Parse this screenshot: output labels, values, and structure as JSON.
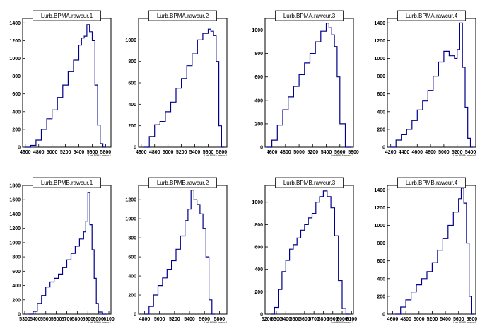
{
  "chart_data": [
    {
      "type": "histogram",
      "title": "Lurb.BPMA.rawcur.1",
      "xlabel": "Lurb.BPMA.rawcur.1",
      "xlim": [
        4560,
        5880
      ],
      "ylim": [
        0,
        1450
      ],
      "xticks": [
        4600,
        4800,
        5000,
        5200,
        5400,
        5600,
        5800
      ],
      "yticks": [
        0,
        200,
        400,
        600,
        800,
        1000,
        1200,
        1400
      ],
      "x": [
        4600,
        4680,
        4760,
        4840,
        4920,
        5000,
        5080,
        5160,
        5240,
        5320,
        5400,
        5440,
        5480,
        5520,
        5560,
        5600,
        5640,
        5680,
        5720,
        5760
      ],
      "values": [
        0,
        20,
        80,
        200,
        320,
        420,
        560,
        700,
        850,
        980,
        1150,
        1230,
        1250,
        1380,
        1300,
        1200,
        700,
        250,
        40,
        0
      ]
    },
    {
      "type": "histogram",
      "title": "Lurb.BPMA.rawcur.2",
      "xlabel": "Lurb.BPMA.rawcur.2",
      "xlim": [
        4560,
        5880
      ],
      "ylim": [
        0,
        1200
      ],
      "xticks": [
        4600,
        4800,
        5000,
        5200,
        5400,
        5600,
        5800
      ],
      "yticks": [
        0,
        200,
        400,
        600,
        800,
        1000
      ],
      "x": [
        4640,
        4720,
        4800,
        4880,
        4960,
        5040,
        5120,
        5200,
        5280,
        5360,
        5440,
        5520,
        5600,
        5640,
        5680,
        5720,
        5760,
        5800
      ],
      "values": [
        0,
        100,
        210,
        240,
        330,
        420,
        550,
        640,
        760,
        870,
        1000,
        1060,
        1100,
        1080,
        1040,
        800,
        200,
        0
      ]
    },
    {
      "type": "histogram",
      "title": "Lurb.BPMA.rawcur.3",
      "xlabel": "Lurb.BPMA.rawcur.3",
      "xlim": [
        4500,
        5800
      ],
      "ylim": [
        0,
        1100
      ],
      "xticks": [
        4600,
        4800,
        5000,
        5200,
        5400,
        5600,
        5800
      ],
      "yticks": [
        0,
        200,
        400,
        600,
        800,
        1000
      ],
      "x": [
        4520,
        4600,
        4680,
        4760,
        4840,
        4920,
        5000,
        5080,
        5160,
        5240,
        5320,
        5400,
        5440,
        5480,
        5520,
        5560,
        5600,
        5680
      ],
      "values": [
        0,
        60,
        190,
        320,
        430,
        520,
        620,
        720,
        800,
        900,
        990,
        1060,
        1020,
        960,
        860,
        600,
        200,
        0
      ]
    },
    {
      "type": "histogram",
      "title": "Lurb.BPMA.rawcur.4",
      "xlabel": "Lurb.BPMA.rawcur.4",
      "xlim": [
        4150,
        5480
      ],
      "ylim": [
        0,
        1450
      ],
      "xticks": [
        4200,
        4400,
        4600,
        4800,
        5000,
        5200,
        5400
      ],
      "yticks": [
        0,
        200,
        400,
        600,
        800,
        1000,
        1200,
        1400
      ],
      "x": [
        4200,
        4280,
        4360,
        4440,
        4520,
        4600,
        4680,
        4760,
        4840,
        4920,
        5000,
        5080,
        5160,
        5200,
        5240,
        5280,
        5320,
        5360,
        5400
      ],
      "values": [
        0,
        80,
        140,
        200,
        300,
        420,
        520,
        640,
        800,
        960,
        1080,
        1030,
        1000,
        1100,
        1400,
        900,
        450,
        100,
        0
      ]
    },
    {
      "type": "histogram",
      "title": "Lurb.BPMB.rawcur.1",
      "xlabel": "Lurb.BPMB.rawcur.1",
      "xlim": [
        5280,
        6120
      ],
      "ylim": [
        0,
        1800
      ],
      "xticks": [
        5300,
        5400,
        5500,
        5600,
        5700,
        5800,
        5900,
        6000,
        6100
      ],
      "yticks": [
        0,
        200,
        400,
        600,
        800,
        1000,
        1200,
        1400,
        1600,
        1800
      ],
      "x": [
        5340,
        5380,
        5420,
        5460,
        5500,
        5540,
        5580,
        5620,
        5660,
        5700,
        5740,
        5780,
        5820,
        5860,
        5880,
        5900,
        5920,
        5940,
        5960,
        5980,
        6000,
        6040
      ],
      "values": [
        0,
        40,
        150,
        260,
        380,
        450,
        500,
        560,
        650,
        760,
        850,
        950,
        1050,
        1150,
        1300,
        1700,
        1250,
        900,
        500,
        150,
        30,
        0
      ]
    },
    {
      "type": "histogram",
      "title": "Lurb.BPMB.rawcur.2",
      "xlabel": "Lurb.BPMB.rawcur.2",
      "xlim": [
        4720,
        5900
      ],
      "ylim": [
        0,
        1350
      ],
      "xticks": [
        4800,
        5000,
        5200,
        5400,
        5600,
        5800
      ],
      "yticks": [
        0,
        200,
        400,
        600,
        800,
        1000,
        1200
      ],
      "x": [
        4800,
        4860,
        4920,
        4980,
        5040,
        5100,
        5160,
        5220,
        5280,
        5340,
        5380,
        5420,
        5460,
        5500,
        5540,
        5580,
        5620,
        5660,
        5700
      ],
      "values": [
        0,
        80,
        200,
        300,
        380,
        470,
        560,
        680,
        820,
        980,
        1100,
        1300,
        1200,
        1150,
        1050,
        900,
        600,
        150,
        0
      ]
    },
    {
      "type": "histogram",
      "title": "Lurb.BPMB.rawcur.3",
      "xlabel": "Lurb.BPMB.rawcur.3",
      "xlim": [
        5180,
        6120
      ],
      "ylim": [
        0,
        1150
      ],
      "xticks": [
        5200,
        5300,
        5400,
        5500,
        5600,
        5700,
        5800,
        5900,
        6000,
        6100
      ],
      "yticks": [
        0,
        200,
        400,
        600,
        800,
        1000
      ],
      "x": [
        5240,
        5280,
        5320,
        5360,
        5400,
        5440,
        5480,
        5520,
        5560,
        5600,
        5640,
        5680,
        5720,
        5760,
        5800,
        5840,
        5880,
        5920,
        5960,
        6000,
        6040
      ],
      "values": [
        0,
        60,
        220,
        380,
        480,
        580,
        620,
        680,
        750,
        800,
        860,
        900,
        1000,
        1050,
        1100,
        1050,
        950,
        700,
        300,
        50,
        0
      ]
    },
    {
      "type": "histogram",
      "title": "Lurb.BPMB.rawcur.4",
      "xlabel": "Lurb.BPMB.rawcur.4",
      "xlim": [
        4520,
        5860
      ],
      "ylim": [
        0,
        1450
      ],
      "xticks": [
        4600,
        4800,
        5000,
        5200,
        5400,
        5600,
        5800
      ],
      "yticks": [
        0,
        200,
        400,
        600,
        800,
        1000,
        1200,
        1400
      ],
      "x": [
        4640,
        4720,
        4800,
        4880,
        4960,
        5040,
        5120,
        5200,
        5280,
        5360,
        5440,
        5520,
        5600,
        5640,
        5680,
        5720,
        5760,
        5800
      ],
      "values": [
        0,
        80,
        160,
        250,
        330,
        400,
        480,
        580,
        720,
        850,
        1000,
        1150,
        1300,
        1420,
        1250,
        800,
        200,
        0
      ]
    }
  ]
}
